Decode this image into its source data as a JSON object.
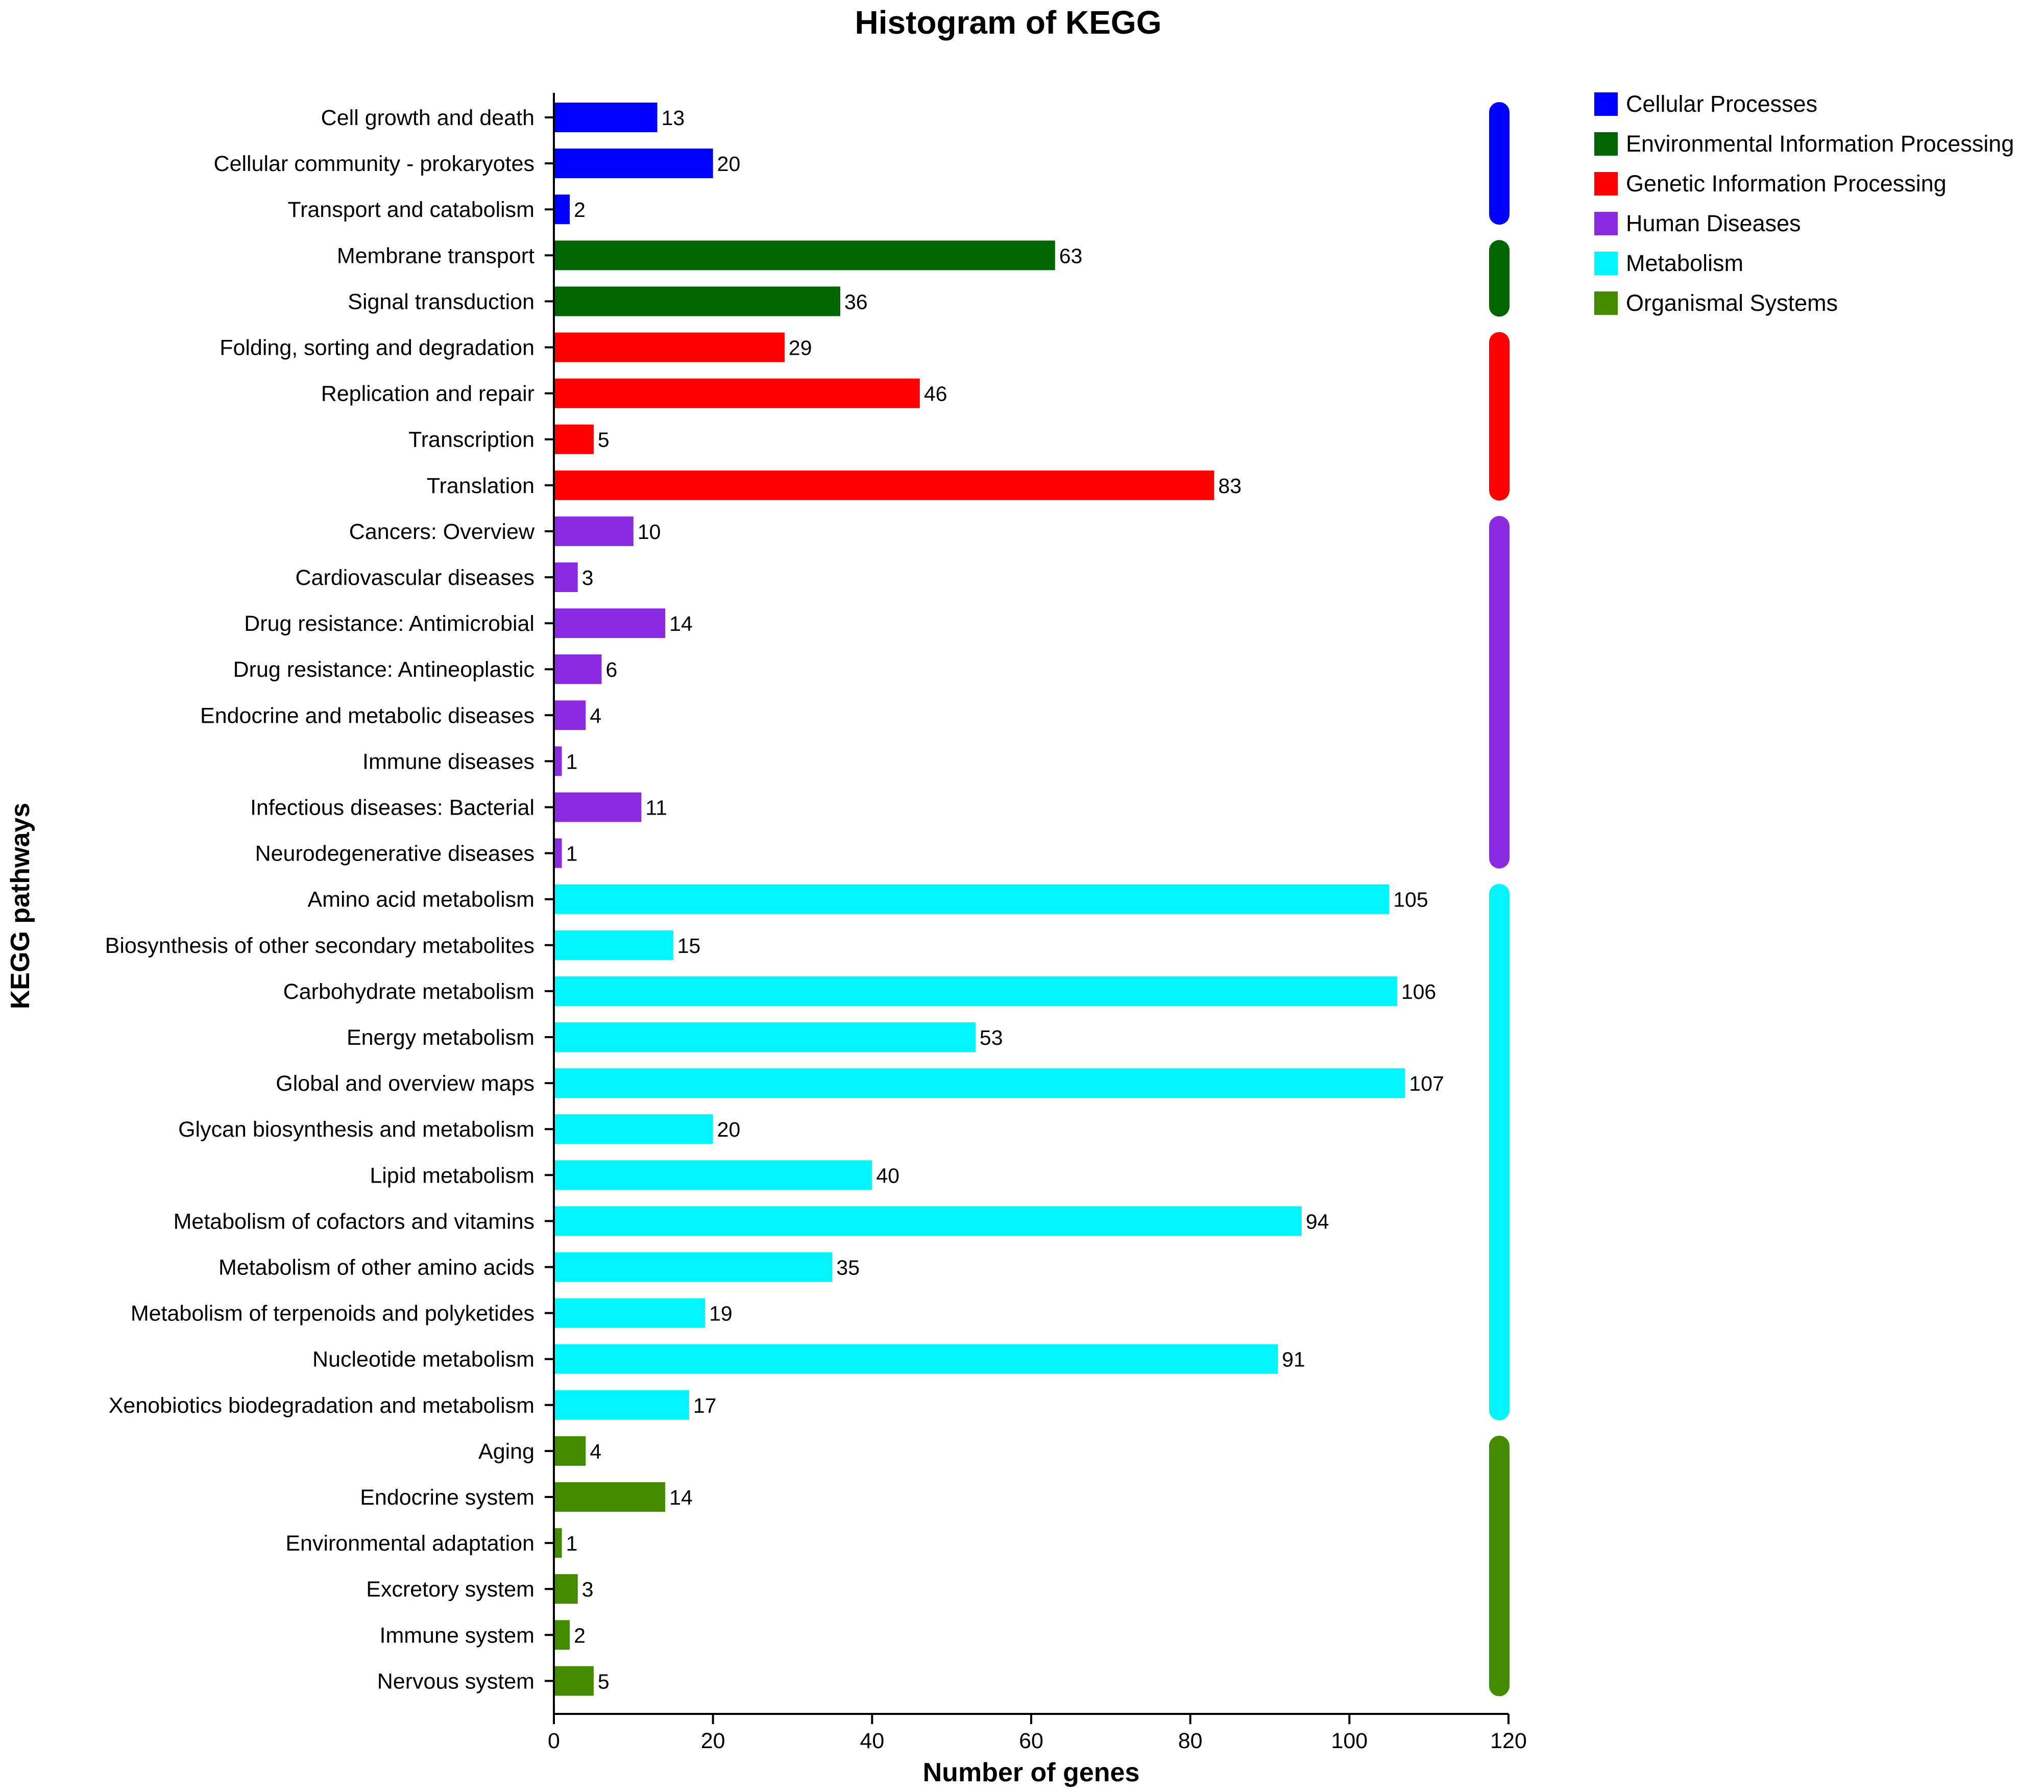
{
  "chart_data": {
    "type": "bar",
    "orientation": "horizontal",
    "title": "Histogram of KEGG",
    "xlabel": "Number of genes",
    "ylabel": "KEGG pathways",
    "xlim": [
      0,
      120
    ],
    "xticks": [
      "0",
      "20",
      "40",
      "60",
      "80",
      "100",
      "120"
    ],
    "legend_position": "top-right",
    "groups": [
      {
        "name": "Cellular Processes",
        "color": "#0000ff"
      },
      {
        "name": "Environmental Information Processing",
        "color": "#006400"
      },
      {
        "name": "Genetic Information Processing",
        "color": "#ff0000"
      },
      {
        "name": "Human Diseases",
        "color": "#8a2be2"
      },
      {
        "name": "Metabolism",
        "color": "#00f5ff"
      },
      {
        "name": "Organismal Systems",
        "color": "#458b00"
      }
    ],
    "categories": [
      "Cell growth and death",
      "Cellular community - prokaryotes",
      "Transport and catabolism",
      "Membrane transport",
      "Signal transduction",
      "Folding, sorting and degradation",
      "Replication and repair",
      "Transcription",
      "Translation",
      "Cancers: Overview",
      "Cardiovascular diseases",
      "Drug resistance: Antimicrobial",
      "Drug resistance: Antineoplastic",
      "Endocrine and metabolic diseases",
      "Immune diseases",
      "Infectious diseases: Bacterial",
      "Neurodegenerative diseases",
      "Amino acid metabolism",
      "Biosynthesis of other secondary metabolites",
      "Carbohydrate metabolism",
      "Energy metabolism",
      "Global and overview maps",
      "Glycan biosynthesis and metabolism",
      "Lipid metabolism",
      "Metabolism of cofactors and vitamins",
      "Metabolism of other amino acids",
      "Metabolism of terpenoids and polyketides",
      "Nucleotide metabolism",
      "Xenobiotics biodegradation and metabolism",
      "Aging",
      "Endocrine system",
      "Environmental adaptation",
      "Excretory system",
      "Immune system",
      "Nervous system"
    ],
    "values": [
      13,
      20,
      2,
      63,
      36,
      29,
      46,
      5,
      83,
      10,
      3,
      14,
      6,
      4,
      1,
      11,
      1,
      105,
      15,
      106,
      53,
      107,
      20,
      40,
      94,
      35,
      19,
      91,
      17,
      4,
      14,
      1,
      3,
      2,
      5
    ],
    "category_group": [
      0,
      0,
      0,
      1,
      1,
      2,
      2,
      2,
      2,
      3,
      3,
      3,
      3,
      3,
      3,
      3,
      3,
      4,
      4,
      4,
      4,
      4,
      4,
      4,
      4,
      4,
      4,
      4,
      4,
      5,
      5,
      5,
      5,
      5,
      5
    ]
  }
}
